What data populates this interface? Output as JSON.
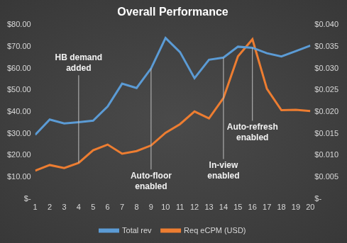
{
  "chart_data": {
    "type": "line",
    "title": "Overall Performance",
    "categories": [
      "1",
      "2",
      "3",
      "4",
      "5",
      "6",
      "7",
      "8",
      "9",
      "10",
      "11",
      "12",
      "13",
      "14",
      "15",
      "16",
      "17",
      "18",
      "19",
      "20"
    ],
    "series": [
      {
        "name": "Total rev",
        "color": "#5b9bd5",
        "values": [
          29.5,
          36.5,
          34.7,
          35.3,
          36,
          42.5,
          53,
          51,
          60,
          74,
          67.5,
          55.5,
          64,
          65,
          70,
          69.5,
          67,
          65.5,
          68,
          70.5
        ]
      },
      {
        "name": "Req eCPM (USD)",
        "color": "#ed7d31",
        "axis": "y2",
        "values": [
          0.0065,
          0.0078,
          0.0071,
          0.0083,
          0.0112,
          0.0125,
          0.0104,
          0.011,
          0.0123,
          0.0152,
          0.0172,
          0.0201,
          0.0185,
          0.0232,
          0.0328,
          0.0367,
          0.0253,
          0.0204,
          0.0205,
          0.0202
        ]
      }
    ],
    "ylim": [
      0,
      80
    ],
    "yticks": [
      {
        "value": 0,
        "label": "$-"
      },
      {
        "value": 10,
        "label": "$10.00"
      },
      {
        "value": 20,
        "label": "$20.00"
      },
      {
        "value": 30,
        "label": "$30.00"
      },
      {
        "value": 40,
        "label": "$40.00"
      },
      {
        "value": 50,
        "label": "$50.00"
      },
      {
        "value": 60,
        "label": "$60.00"
      },
      {
        "value": 70,
        "label": "$70.00"
      },
      {
        "value": 80,
        "label": "$80.00"
      }
    ],
    "y2lim": [
      0,
      0.04
    ],
    "y2ticks": [
      {
        "value": 0,
        "label": "$-"
      },
      {
        "value": 0.005,
        "label": "$0.005"
      },
      {
        "value": 0.01,
        "label": "$0.010"
      },
      {
        "value": 0.015,
        "label": "$0.015"
      },
      {
        "value": 0.02,
        "label": "$0.020"
      },
      {
        "value": 0.025,
        "label": "$0.025"
      },
      {
        "value": 0.03,
        "label": "$0.030"
      },
      {
        "value": 0.035,
        "label": "$0.035"
      },
      {
        "value": 0.04,
        "label": "$0.040"
      }
    ],
    "grid": false,
    "legend": "bottom",
    "annotations": [
      {
        "text": "HB demand added",
        "x": "4"
      },
      {
        "text": "Auto-floor enabled",
        "x": "9"
      },
      {
        "text": "In-view enabled",
        "x": "14"
      },
      {
        "text": "Auto-refresh enabled",
        "x": "16"
      }
    ]
  }
}
